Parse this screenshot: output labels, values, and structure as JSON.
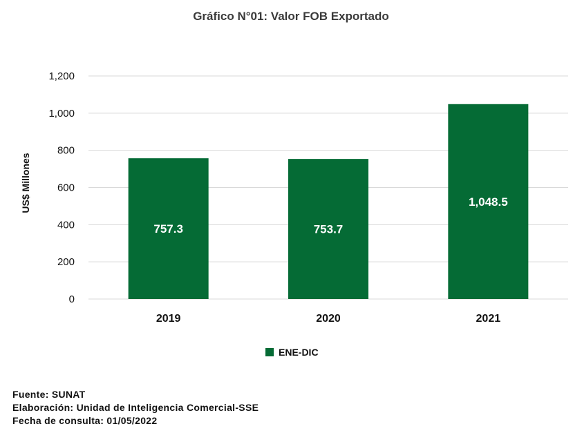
{
  "chart_data": {
    "type": "bar",
    "title": "Gráfico N°01: Valor FOB Exportado",
    "ylabel": "US$ Millones",
    "xlabel": "",
    "categories": [
      "2019",
      "2020",
      "2021"
    ],
    "series": [
      {
        "name": "ENE-DIC",
        "values": [
          757.3,
          753.7,
          1048.5
        ],
        "color": "#056b35"
      }
    ],
    "data_labels": [
      "757.3",
      "753.7",
      "1,048.5"
    ],
    "ylim": [
      0,
      1200
    ],
    "yticks": [
      0,
      200,
      400,
      600,
      800,
      1000,
      1200
    ],
    "ytick_labels": [
      "0",
      "200",
      "400",
      "600",
      "800",
      "1,000",
      "1,200"
    ],
    "grid": true,
    "legend_position": "bottom"
  },
  "footer": {
    "source": "Fuente: SUNAT",
    "prepared_by": "Elaboración: Unidad de Inteligencia Comercial-SSE",
    "consulted": "Fecha de consulta: 01/05/2022"
  },
  "colors": {
    "bar": "#056b35",
    "grid": "#d9d9d9"
  }
}
